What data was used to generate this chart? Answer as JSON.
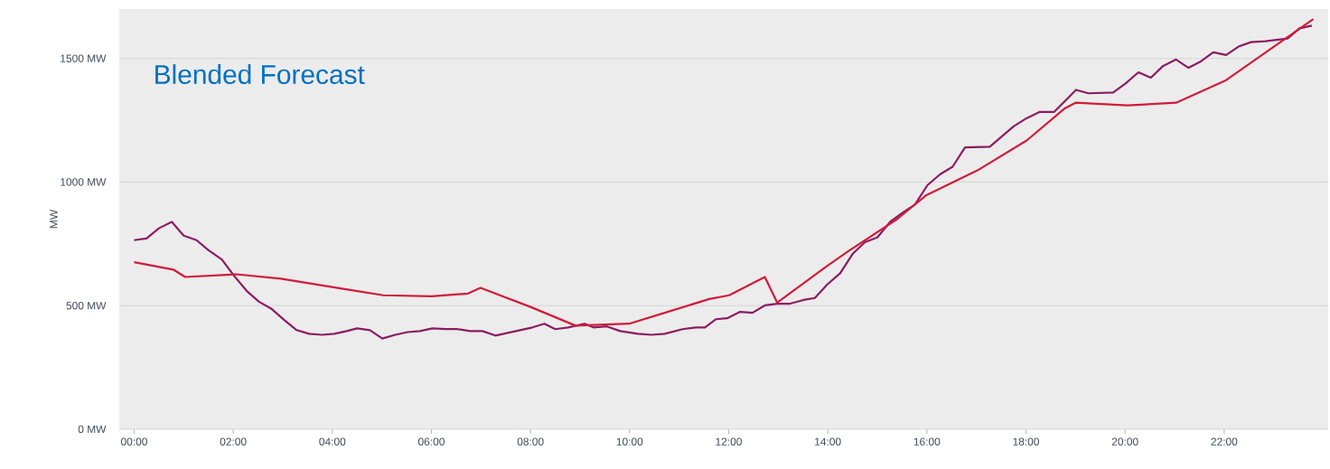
{
  "chart_data": {
    "type": "line",
    "title": "Blended Forecast",
    "ylabel": "MW",
    "xlim": [
      -0.3,
      24.1
    ],
    "ylim": [
      0,
      1700
    ],
    "xticks": [
      {
        "value": 0,
        "label": "00:00"
      },
      {
        "value": 2,
        "label": "02:00"
      },
      {
        "value": 4,
        "label": "04:00"
      },
      {
        "value": 6,
        "label": "06:00"
      },
      {
        "value": 8,
        "label": "08:00"
      },
      {
        "value": 10,
        "label": "10:00"
      },
      {
        "value": 12,
        "label": "12:00"
      },
      {
        "value": 14,
        "label": "14:00"
      },
      {
        "value": 16,
        "label": "16:00"
      },
      {
        "value": 18,
        "label": "18:00"
      },
      {
        "value": 20,
        "label": "20:00"
      },
      {
        "value": 22,
        "label": "22:00"
      }
    ],
    "yticks": [
      {
        "value": 0,
        "label": "0 MW"
      },
      {
        "value": 500,
        "label": "500 MW"
      },
      {
        "value": 1000,
        "label": "1000 MW"
      },
      {
        "value": 1500,
        "label": "1500 MW"
      }
    ],
    "grid": "y",
    "series": [
      {
        "color": "#8b1c62",
        "x": [
          0,
          0.25,
          0.5,
          0.76,
          1.0,
          1.26,
          1.5,
          1.77,
          2.02,
          2.27,
          2.52,
          2.78,
          3.03,
          3.28,
          3.53,
          3.79,
          4.04,
          4.29,
          4.5,
          4.76,
          5.01,
          5.27,
          5.52,
          5.77,
          6.02,
          6.28,
          6.53,
          6.78,
          7.03,
          7.29,
          7.54,
          7.79,
          8.04,
          8.28,
          8.5,
          8.76,
          9.09,
          9.27,
          9.54,
          9.81,
          10.17,
          10.44,
          10.71,
          11.07,
          11.34,
          11.52,
          11.74,
          11.97,
          12.23,
          12.48,
          12.73,
          12.98,
          13.24,
          13.51,
          13.74,
          13.99,
          14.25,
          14.5,
          14.75,
          15.0,
          15.26,
          15.51,
          15.76,
          16.01,
          16.27,
          16.52,
          16.77,
          17.27,
          17.75,
          18.01,
          18.28,
          18.57,
          18.83,
          19.01,
          19.26,
          19.76,
          20.01,
          20.27,
          20.52,
          20.77,
          21.03,
          21.28,
          21.53,
          21.78,
          22.04,
          22.29,
          22.54,
          22.83,
          23.28,
          23.52,
          23.77
        ],
        "values": [
          765,
          772,
          813,
          839,
          783,
          765,
          724,
          687,
          620,
          560,
          516,
          486,
          442,
          401,
          386,
          382,
          386,
          397,
          408,
          401,
          367,
          382,
          393,
          397,
          408,
          405,
          405,
          397,
          397,
          379,
          390,
          401,
          412,
          427,
          405,
          412,
          427,
          412,
          416,
          397,
          386,
          382,
          386,
          405,
          412,
          412,
          445,
          449,
          475,
          471,
          501,
          508,
          508,
          523,
          531,
          586,
          631,
          709,
          757,
          776,
          839,
          876,
          909,
          987,
          1032,
          1062,
          1140,
          1143,
          1225,
          1258,
          1284,
          1284,
          1336,
          1373,
          1359,
          1362,
          1399,
          1444,
          1422,
          1470,
          1496,
          1462,
          1488,
          1525,
          1514,
          1548,
          1566,
          1570,
          1581,
          1622,
          1633
        ]
      },
      {
        "color": "#d01c3a",
        "x": [
          0,
          0.79,
          1.03,
          2.06,
          2.96,
          4.22,
          5.03,
          6.01,
          6.74,
          6.99,
          8.01,
          8.91,
          9.99,
          10.71,
          11.61,
          12.01,
          12.73,
          12.98,
          13.96,
          14.41,
          15.4,
          15.99,
          17.02,
          18.02,
          18.79,
          19.0,
          20.05,
          21.03,
          22.02,
          23.8
        ],
        "values": [
          676,
          646,
          616,
          627,
          609,
          568,
          542,
          538,
          549,
          572,
          494,
          419,
          427,
          471,
          527,
          542,
          616,
          512,
          657,
          720,
          850,
          947,
          1047,
          1169,
          1299,
          1321,
          1310,
          1321,
          1410,
          1659
        ]
      }
    ]
  }
}
